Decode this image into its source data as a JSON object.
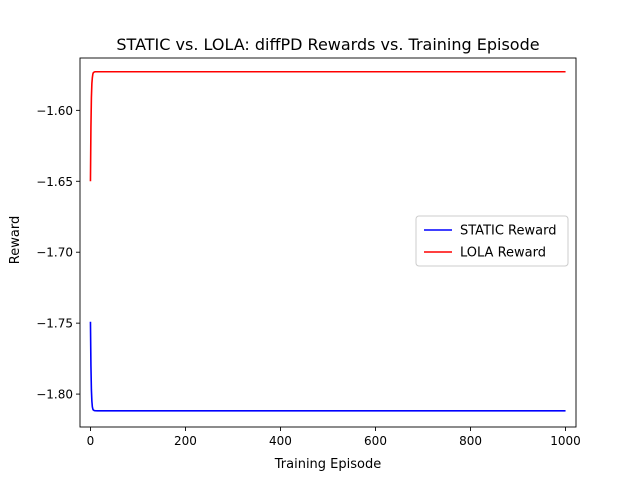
{
  "chart_data": {
    "type": "line",
    "title": "STATIC vs. LOLA: diffPD Rewards vs. Training Episode",
    "xlabel": "Training Episode",
    "ylabel": "Reward",
    "xlim": [
      -22,
      1022
    ],
    "ylim": [
      -1.8232,
      -1.5631
    ],
    "xticks": [
      {
        "value": 0,
        "label": "0"
      },
      {
        "value": 200,
        "label": "200"
      },
      {
        "value": 400,
        "label": "400"
      },
      {
        "value": 600,
        "label": "600"
      },
      {
        "value": 800,
        "label": "800"
      },
      {
        "value": 1000,
        "label": "1000"
      }
    ],
    "yticks": [
      {
        "value": -1.6,
        "label": "−1.60"
      },
      {
        "value": -1.65,
        "label": "−1.65"
      },
      {
        "value": -1.7,
        "label": "−1.70"
      },
      {
        "value": -1.75,
        "label": "−1.75"
      },
      {
        "value": -1.8,
        "label": "−1.80"
      }
    ],
    "grid": false,
    "legend_position": "center-right",
    "series": [
      {
        "name": "STATIC Reward",
        "color": "#0000ff",
        "x": [
          0,
          1,
          2,
          3,
          4,
          5,
          6,
          8,
          10,
          15,
          20,
          50,
          100,
          200,
          400,
          600,
          800,
          1000
        ],
        "y": [
          -1.749,
          -1.78,
          -1.797,
          -1.805,
          -1.809,
          -1.8105,
          -1.8112,
          -1.8116,
          -1.8117,
          -1.8118,
          -1.8118,
          -1.8118,
          -1.8118,
          -1.8118,
          -1.8118,
          -1.8118,
          -1.8118,
          -1.8118
        ]
      },
      {
        "name": "LOLA Reward",
        "color": "#ff0000",
        "x": [
          0,
          1,
          2,
          3,
          4,
          5,
          6,
          8,
          10,
          15,
          20,
          50,
          100,
          200,
          400,
          600,
          800,
          1000
        ],
        "y": [
          -1.65,
          -1.612,
          -1.591,
          -1.581,
          -1.577,
          -1.5745,
          -1.5735,
          -1.573,
          -1.5728,
          -1.5728,
          -1.5728,
          -1.5728,
          -1.5728,
          -1.5728,
          -1.5728,
          -1.5728,
          -1.5728,
          -1.5728
        ]
      }
    ]
  }
}
